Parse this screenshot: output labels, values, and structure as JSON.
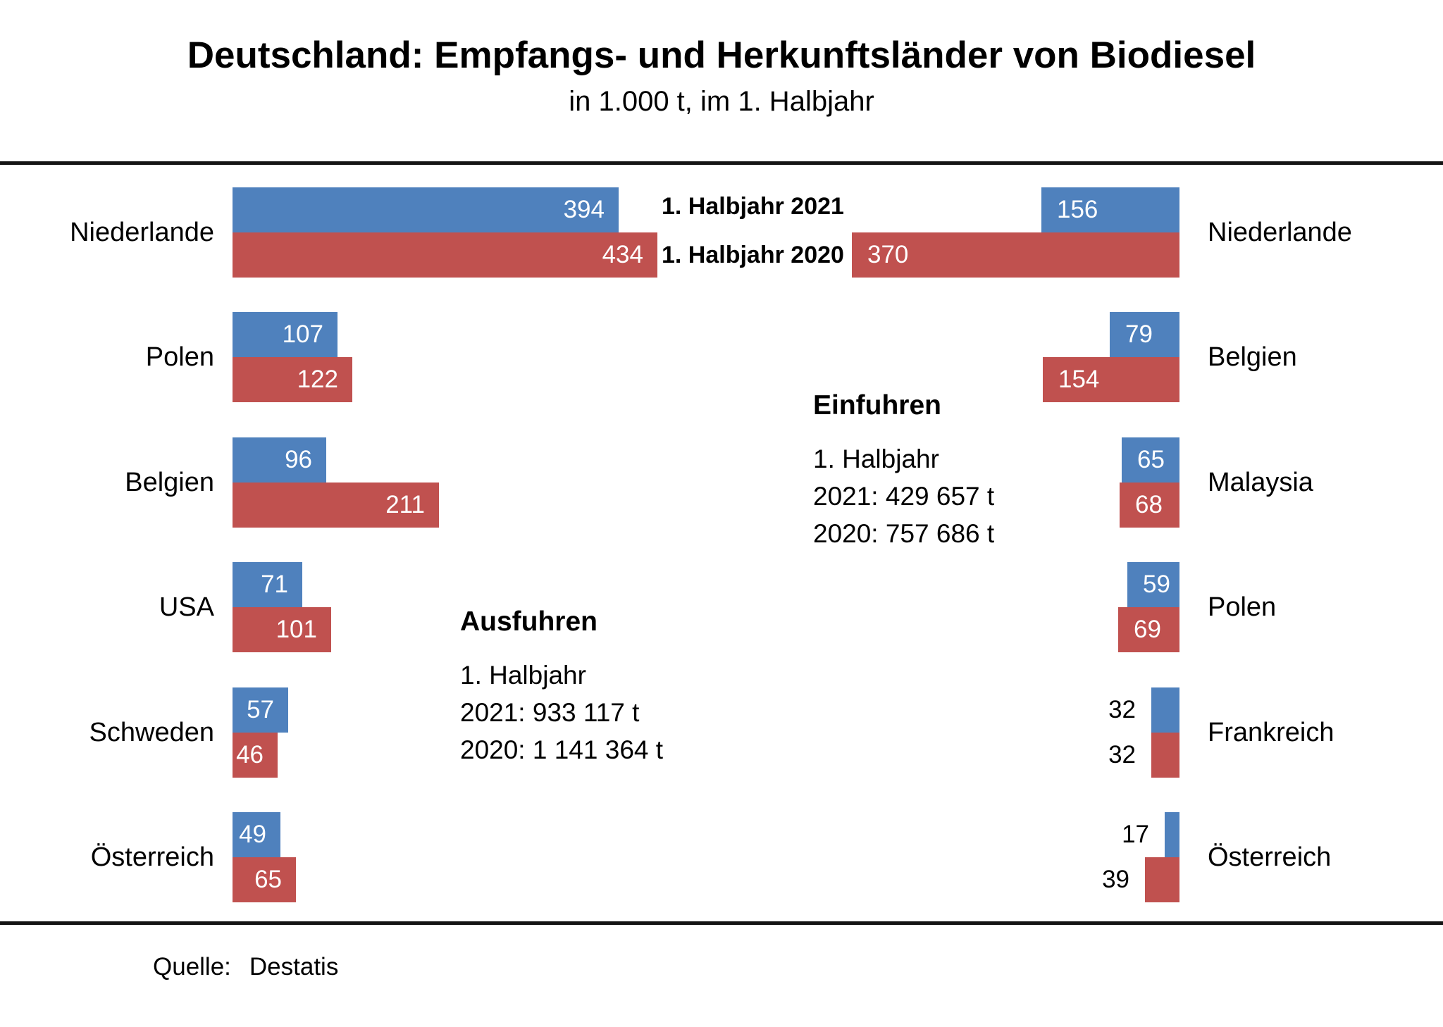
{
  "page": {
    "title": "Deutschland: Empfangs- und Herkunftsländer von Biodiesel",
    "subtitle": "in 1.000 t, im 1. Halbjahr",
    "source_label": "Quelle:",
    "source_value": "Destatis"
  },
  "colors": {
    "halbjahr_2021": "#4f81bd",
    "halbjahr_2020": "#c0514f",
    "rule": "#141414",
    "background": "#ffffff"
  },
  "legend": {
    "items": [
      {
        "label": "1. Halbjahr 2021",
        "color": "#4f81bd"
      },
      {
        "label": "1. Halbjahr 2020",
        "color": "#c0514f"
      }
    ]
  },
  "chart_data": [
    {
      "type": "bar",
      "orientation": "horizontal",
      "direction": "left-to-right",
      "block_title": "Ausfuhren",
      "block_lines": [
        "1. Halbjahr",
        "2021: 933 117 t",
        "2020: 1 141 364 t"
      ],
      "unit": "1.000 t",
      "value_labels": true,
      "categories": [
        "Niederlande",
        "Polen",
        "Belgien",
        "USA",
        "Schweden",
        "Österreich"
      ],
      "series": [
        {
          "name": "1. Halbjahr 2021",
          "color": "#4f81bd",
          "values": [
            394,
            107,
            96,
            71,
            57,
            49
          ]
        },
        {
          "name": "1. Halbjahr 2020",
          "color": "#c0514f",
          "values": [
            434,
            122,
            211,
            101,
            46,
            65
          ]
        }
      ],
      "labels_outside": [
        false,
        false,
        false,
        false,
        false,
        false
      ]
    },
    {
      "type": "bar",
      "orientation": "horizontal",
      "direction": "right-to-left",
      "block_title": "Einfuhren",
      "block_lines": [
        "1. Halbjahr",
        "2021: 429 657 t",
        "2020: 757 686 t"
      ],
      "unit": "1.000 t",
      "value_labels": true,
      "categories": [
        "Niederlande",
        "Belgien",
        "Malaysia",
        "Polen",
        "Frankreich",
        "Österreich"
      ],
      "series": [
        {
          "name": "1. Halbjahr 2021",
          "color": "#4f81bd",
          "values": [
            156,
            79,
            65,
            59,
            32,
            17
          ]
        },
        {
          "name": "1. Halbjahr 2020",
          "color": "#c0514f",
          "values": [
            370,
            154,
            68,
            69,
            32,
            39
          ]
        }
      ],
      "labels_outside": [
        false,
        false,
        false,
        false,
        true,
        true
      ]
    }
  ]
}
